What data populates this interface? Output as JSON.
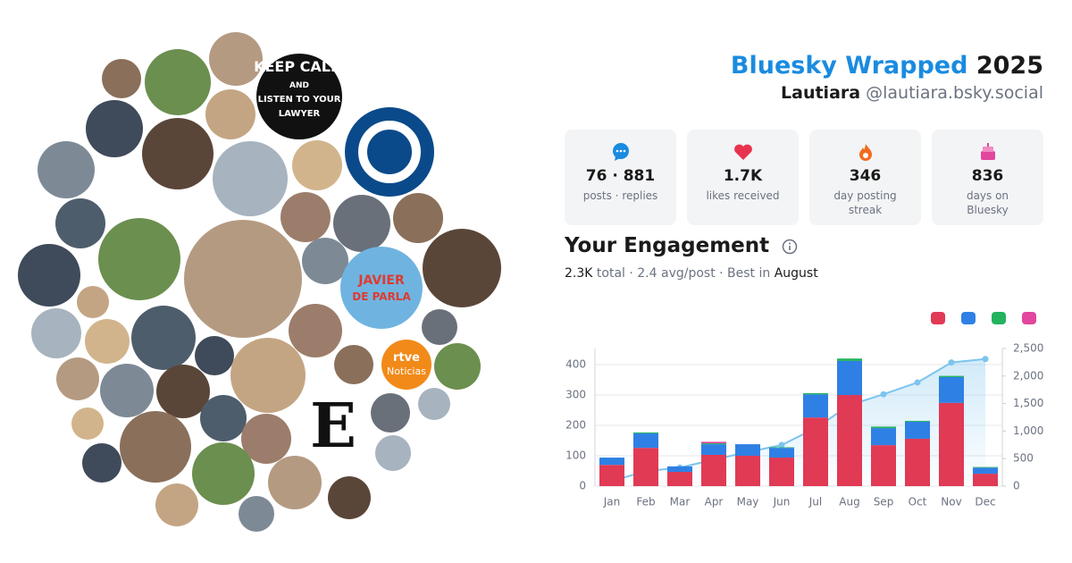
{
  "header": {
    "title": "Bluesky Wrapped",
    "year": "2025",
    "name": "Lautiara",
    "handle": "@lautiara.bsky.social"
  },
  "avatars": [
    "KEEP CALM",
    "AND",
    "LISTEN TO YOUR",
    "LAWYER",
    "JAVIER",
    "DE PARLA",
    "rtve",
    "Noticias",
    "E"
  ],
  "stats": [
    {
      "value": "76 · 881",
      "label": "posts · replies"
    },
    {
      "value": "1.7K",
      "label": "likes received"
    },
    {
      "value": "346",
      "label": "day posting streak"
    },
    {
      "value": "836",
      "label": "days on Bluesky"
    }
  ],
  "engagement": {
    "title": "Your Engagement",
    "summary": [
      "2.3K",
      "total · 2.4 avg/post · Best in",
      "August"
    ]
  },
  "chart_data": {
    "type": "bar",
    "categories": [
      "Jan",
      "Feb",
      "Mar",
      "Apr",
      "May",
      "Jun",
      "Jul",
      "Aug",
      "Sep",
      "Oct",
      "Nov",
      "Dec"
    ],
    "series": [
      {
        "color": "#e03a55",
        "values": [
          70,
          126,
          47,
          103,
          100,
          94,
          226,
          300,
          135,
          156,
          274,
          41
        ]
      },
      {
        "color": "#2f80e4",
        "values": [
          24,
          48,
          18,
          35,
          38,
          32,
          76,
          112,
          56,
          56,
          85,
          20
        ]
      },
      {
        "color": "#22b35e",
        "values": [
          0,
          3,
          0,
          3,
          0,
          2,
          4,
          8,
          5,
          3,
          4,
          2
        ]
      },
      {
        "color": "#e2469e",
        "values": [
          0,
          0,
          0,
          5,
          0,
          0,
          0,
          0,
          0,
          0,
          0,
          0
        ]
      },
      {
        "type": "line",
        "axis": "y2",
        "color": "#7cc4ee",
        "values": [
          94,
          271,
          336,
          481,
          619,
          747,
          1053,
          1473,
          1669,
          1884,
          2247,
          2309
        ]
      }
    ],
    "ylim": [
      0,
      453
    ],
    "yticks": [
      0,
      100,
      200,
      300,
      400
    ],
    "y2lim": [
      0,
      2500
    ],
    "y2ticks": [
      0,
      500,
      {
        "value": 1000,
        "label": "1,000"
      },
      {
        "value": 1500,
        "label": "1,500"
      },
      {
        "value": 2000,
        "label": "2,000"
      },
      {
        "value": 2500,
        "label": "2,500"
      }
    ],
    "grid": true,
    "stacked": true
  }
}
